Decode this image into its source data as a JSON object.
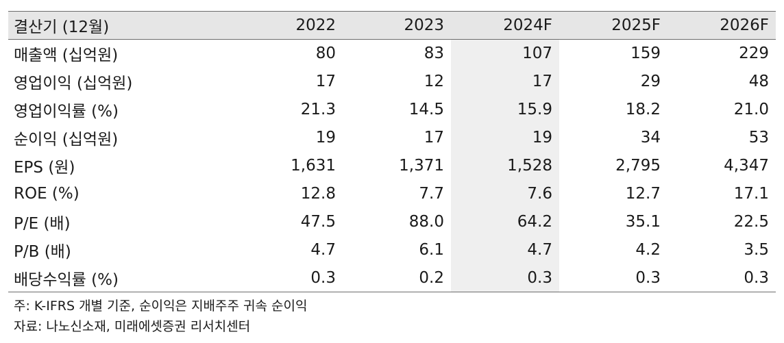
{
  "table": {
    "header": [
      "결산기 (12월)",
      "2022",
      "2023",
      "2024F",
      "2025F",
      "2026F"
    ],
    "rows": [
      [
        "매출액 (십억원)",
        "80",
        "83",
        "107",
        "159",
        "229"
      ],
      [
        "영업이익 (십억원)",
        "17",
        "12",
        "17",
        "29",
        "48"
      ],
      [
        "영업이익률 (%)",
        "21.3",
        "14.5",
        "15.9",
        "18.2",
        "21.0"
      ],
      [
        "순이익 (십억원)",
        "19",
        "17",
        "19",
        "34",
        "53"
      ],
      [
        "EPS (원)",
        "1,631",
        "1,371",
        "1,528",
        "2,795",
        "4,347"
      ],
      [
        "ROE (%)",
        "12.8",
        "7.7",
        "7.6",
        "12.7",
        "17.1"
      ],
      [
        "P/E (배)",
        "47.5",
        "88.0",
        "64.2",
        "35.1",
        "22.5"
      ],
      [
        "P/B (배)",
        "4.7",
        "6.1",
        "4.7",
        "4.2",
        "3.5"
      ],
      [
        "배당수익률 (%)",
        "0.3",
        "0.2",
        "0.3",
        "0.3",
        "0.3"
      ]
    ]
  },
  "notes": {
    "note": "주: K-IFRS 개별 기준, 순이익은 지배주주 귀속 순이익",
    "source": "자료: 나노신소재, 미래에셋증권 리서치센터"
  },
  "colors": {
    "header_bg": "#e6e6e6",
    "highlight_col_bg": "#efefef",
    "rule": "#6b6b6b"
  }
}
